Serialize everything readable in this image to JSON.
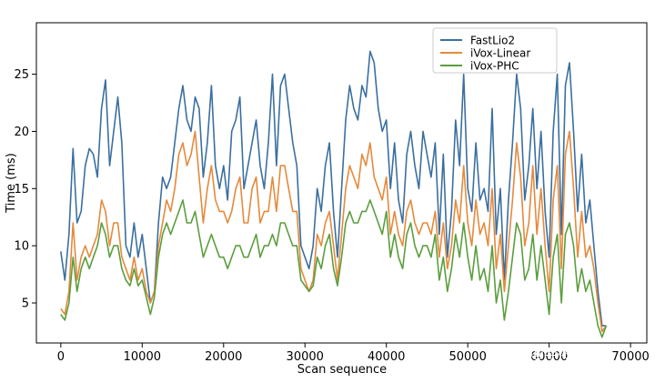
{
  "chart_data": {
    "type": "line",
    "title": "",
    "xlabel": "Scan sequence",
    "ylabel": "Time (ms)",
    "xlim": [
      -3000,
      72000
    ],
    "ylim": [
      1.5,
      29.5
    ],
    "xticks": [
      0,
      10000,
      20000,
      30000,
      40000,
      50000,
      60000,
      70000
    ],
    "xtick_labels": [
      "0",
      "10000",
      "20000",
      "30000",
      "40000",
      "50000",
      "60000",
      "70000"
    ],
    "yticks": [
      5,
      10,
      15,
      20,
      25
    ],
    "ytick_labels": [
      "5",
      "10",
      "15",
      "20",
      "25"
    ],
    "grid": false,
    "legend_position": "top-center",
    "series": [
      {
        "name": "FastLio2",
        "color": "#3b6fa0",
        "x": [
          0,
          500,
          1000,
          1500,
          2000,
          2500,
          3000,
          3500,
          4000,
          4500,
          5000,
          5500,
          6000,
          6500,
          7000,
          7500,
          8000,
          8500,
          9000,
          9500,
          10000,
          10500,
          11000,
          11500,
          12000,
          12500,
          13000,
          13500,
          14000,
          14500,
          15000,
          15500,
          16000,
          16500,
          17000,
          17500,
          18000,
          18500,
          19000,
          19500,
          20000,
          20500,
          21000,
          21500,
          22000,
          22500,
          23000,
          23500,
          24000,
          24500,
          25000,
          25500,
          26000,
          26500,
          27000,
          27500,
          28000,
          28500,
          29000,
          29500,
          30000,
          30500,
          31000,
          31500,
          32000,
          32500,
          33000,
          33500,
          34000,
          34500,
          35000,
          35500,
          36000,
          36500,
          37000,
          37500,
          38000,
          38500,
          39000,
          39500,
          40000,
          40500,
          41000,
          41500,
          42000,
          42500,
          43000,
          43500,
          44000,
          44500,
          45000,
          45500,
          46000,
          46500,
          47000,
          47500,
          48000,
          48500,
          49000,
          49500,
          50000,
          50500,
          51000,
          51500,
          52000,
          52500,
          53000,
          53500,
          54000,
          54500,
          55000,
          55500,
          56000,
          56500,
          57000,
          57500,
          58000,
          58500,
          59000,
          59500,
          60000,
          60500,
          61000,
          61500,
          62000,
          62500,
          63000,
          63500,
          64000,
          64500,
          65000,
          65500,
          66000,
          66500,
          67000
        ],
        "y": [
          9.5,
          7,
          11,
          18.5,
          12,
          13,
          17,
          18.5,
          18,
          16,
          22,
          24.5,
          17,
          20,
          23,
          19,
          10,
          9,
          12,
          9,
          11,
          8,
          5,
          6,
          12,
          16,
          15,
          16,
          19,
          22,
          24,
          21,
          20,
          23,
          22,
          16,
          19,
          24,
          17,
          15,
          17,
          14,
          20,
          21,
          23,
          15,
          17,
          19,
          21,
          17,
          15,
          19,
          25,
          17,
          24,
          25,
          22,
          19,
          17,
          10,
          9,
          8,
          10,
          15,
          13,
          17,
          19,
          13,
          9,
          15,
          21,
          24,
          22,
          21,
          24,
          23,
          27,
          26,
          22,
          20,
          21,
          15,
          19,
          14,
          12,
          18,
          20,
          17,
          15,
          20,
          18,
          16,
          19,
          11,
          18,
          9,
          13,
          21,
          17,
          25,
          15,
          13,
          19,
          14,
          15,
          13,
          22,
          11,
          15,
          7,
          14,
          19,
          25,
          22,
          14,
          17,
          22,
          15,
          20,
          13,
          9,
          20,
          25,
          11,
          24,
          26,
          20,
          13,
          18,
          12,
          14,
          10,
          6,
          3,
          3
        ]
      },
      {
        "name": "iVox-Linear",
        "color": "#e58a3b",
        "x": [
          0,
          500,
          1000,
          1500,
          2000,
          2500,
          3000,
          3500,
          4000,
          4500,
          5000,
          5500,
          6000,
          6500,
          7000,
          7500,
          8000,
          8500,
          9000,
          9500,
          10000,
          10500,
          11000,
          11500,
          12000,
          12500,
          13000,
          13500,
          14000,
          14500,
          15000,
          15500,
          16000,
          16500,
          17000,
          17500,
          18000,
          18500,
          19000,
          19500,
          20000,
          20500,
          21000,
          21500,
          22000,
          22500,
          23000,
          23500,
          24000,
          24500,
          25000,
          25500,
          26000,
          26500,
          27000,
          27500,
          28000,
          28500,
          29000,
          29500,
          30000,
          30500,
          31000,
          31500,
          32000,
          32500,
          33000,
          33500,
          34000,
          34500,
          35000,
          35500,
          36000,
          36500,
          37000,
          37500,
          38000,
          38500,
          39000,
          39500,
          40000,
          40500,
          41000,
          41500,
          42000,
          42500,
          43000,
          43500,
          44000,
          44500,
          45000,
          45500,
          46000,
          46500,
          47000,
          47500,
          48000,
          48500,
          49000,
          49500,
          50000,
          50500,
          51000,
          51500,
          52000,
          52500,
          53000,
          53500,
          54000,
          54500,
          55000,
          55500,
          56000,
          56500,
          57000,
          57500,
          58000,
          58500,
          59000,
          59500,
          60000,
          60500,
          61000,
          61500,
          62000,
          62500,
          63000,
          63500,
          64000,
          64500,
          65000,
          65500,
          66000,
          66500,
          67000
        ],
        "y": [
          4.5,
          4,
          6,
          12,
          7,
          9,
          10,
          9,
          10,
          11,
          14,
          13,
          10,
          12,
          12,
          9,
          8,
          7,
          9,
          7,
          8,
          6,
          5,
          6,
          10,
          12,
          14,
          13,
          15,
          18,
          19,
          17,
          18,
          20,
          16,
          12,
          15,
          17,
          14,
          13,
          13,
          12,
          13,
          15,
          16,
          12,
          12,
          15,
          16,
          12,
          13,
          13,
          16,
          13,
          17,
          17,
          15,
          13,
          13,
          8,
          7,
          6,
          7,
          11,
          10,
          12,
          13,
          10,
          7,
          11,
          15,
          17,
          16,
          15,
          18,
          17,
          19,
          16,
          15,
          14,
          16,
          11,
          13,
          11,
          10,
          13,
          14,
          12,
          11,
          12,
          12,
          11,
          13,
          9,
          12,
          8,
          10,
          14,
          12,
          17,
          12,
          10,
          14,
          11,
          12,
          10,
          15,
          8,
          11,
          6,
          10,
          14,
          19,
          16,
          10,
          12,
          17,
          11,
          15,
          10,
          6,
          14,
          17,
          8,
          18,
          20,
          15,
          9,
          13,
          9,
          10,
          8,
          5,
          2.5,
          3
        ]
      },
      {
        "name": "iVox-PHC",
        "color": "#5b9e3e",
        "x": [
          0,
          500,
          1000,
          1500,
          2000,
          2500,
          3000,
          3500,
          4000,
          4500,
          5000,
          5500,
          6000,
          6500,
          7000,
          7500,
          8000,
          8500,
          9000,
          9500,
          10000,
          10500,
          11000,
          11500,
          12000,
          12500,
          13000,
          13500,
          14000,
          14500,
          15000,
          15500,
          16000,
          16500,
          17000,
          17500,
          18000,
          18500,
          19000,
          19500,
          20000,
          20500,
          21000,
          21500,
          22000,
          22500,
          23000,
          23500,
          24000,
          24500,
          25000,
          25500,
          26000,
          26500,
          27000,
          27500,
          28000,
          28500,
          29000,
          29500,
          30000,
          30500,
          31000,
          31500,
          32000,
          32500,
          33000,
          33500,
          34000,
          34500,
          35000,
          35500,
          36000,
          36500,
          37000,
          37500,
          38000,
          38500,
          39000,
          39500,
          40000,
          40500,
          41000,
          41500,
          42000,
          42500,
          43000,
          43500,
          44000,
          44500,
          45000,
          45500,
          46000,
          46500,
          47000,
          47500,
          48000,
          48500,
          49000,
          49500,
          50000,
          50500,
          51000,
          51500,
          52000,
          52500,
          53000,
          53500,
          54000,
          54500,
          55000,
          55500,
          56000,
          56500,
          57000,
          57500,
          58000,
          58500,
          59000,
          59500,
          60000,
          60500,
          61000,
          61500,
          62000,
          62500,
          63000,
          63500,
          64000,
          64500,
          65000,
          65500,
          66000,
          66500,
          67000
        ],
        "y": [
          4,
          3.5,
          5,
          9,
          6,
          8,
          9,
          8,
          9,
          10,
          12,
          11,
          9,
          10,
          10,
          8,
          7,
          6.5,
          8,
          6.5,
          7,
          5.5,
          4,
          5.5,
          9,
          11,
          12,
          11,
          12,
          13,
          14,
          12,
          12,
          13,
          11,
          9,
          10,
          11,
          10,
          9,
          9,
          8,
          9,
          10,
          10,
          9,
          9,
          10,
          11,
          9,
          10,
          10,
          11,
          10,
          12,
          12,
          11,
          10,
          10,
          7,
          6.5,
          6,
          6.5,
          9,
          8,
          10,
          11,
          8,
          6.5,
          9,
          12,
          13,
          12,
          12,
          13,
          13,
          14,
          13,
          12,
          11,
          13,
          9,
          11,
          9,
          8,
          11,
          12,
          10,
          9,
          10,
          10,
          9,
          11,
          7,
          9,
          6,
          8,
          11,
          9,
          12,
          9,
          7,
          10,
          7,
          8,
          6,
          10,
          5,
          7,
          3.5,
          6,
          9,
          12,
          11,
          7,
          8,
          11,
          7,
          10,
          7,
          4,
          9,
          11,
          5,
          11,
          12,
          10,
          6,
          8,
          6,
          7,
          5,
          3,
          2,
          3
        ]
      }
    ]
  },
  "watermark": "知乎 @毕彬居士"
}
